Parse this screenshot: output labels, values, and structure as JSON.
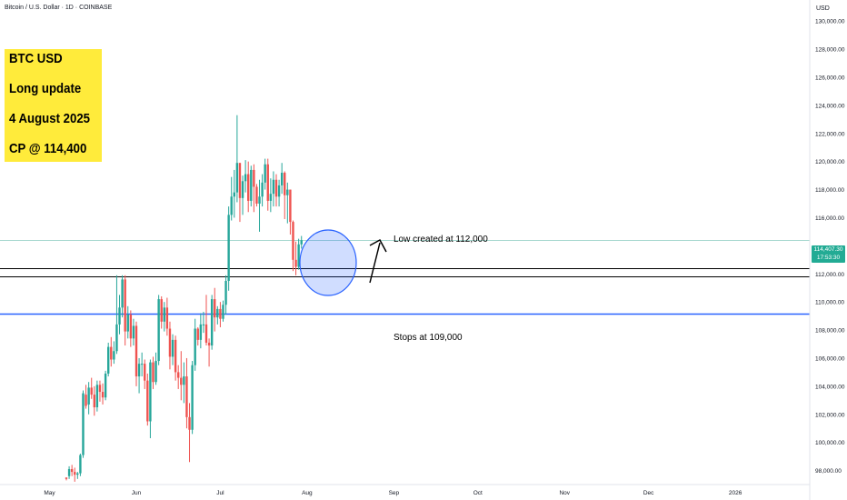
{
  "header": {
    "symbol_line": "Bitcoin / U.S. Dollar · 1D · COINBASE"
  },
  "info_box": {
    "line1": "BTC USD",
    "line2": "Long update",
    "line3": "4 August 2025",
    "line4": "CP @ 114,400",
    "background": "#ffeb3b"
  },
  "axis": {
    "currency": "USD",
    "y_ticks": [
      "130,000.00",
      "128,000.00",
      "126,000.00",
      "124,000.00",
      "122,000.00",
      "120,000.00",
      "118,000.00",
      "116,000.00",
      "112,000.00",
      "110,000.00",
      "108,000.00",
      "106,000.00",
      "104,000.00",
      "102,000.00",
      "100,000.00",
      "98,000.00"
    ],
    "x_ticks": [
      "May",
      "Jun",
      "Jul",
      "Aug",
      "Sep",
      "Oct",
      "Nov",
      "Dec",
      "2026"
    ]
  },
  "price_tag": {
    "price": "114,407.30",
    "countdown": "17:53:30",
    "color": "#22ab94"
  },
  "annotations": {
    "low_created": "Low created at 112,000",
    "stops": "Stops at 109,000"
  },
  "chart_data": {
    "type": "candlestick",
    "title": "Bitcoin / U.S. Dollar · 1D · COINBASE",
    "ylim": [
      97000,
      131500
    ],
    "y_ticks": [
      98000,
      100000,
      102000,
      104000,
      106000,
      108000,
      110000,
      112000,
      116000,
      118000,
      120000,
      122000,
      124000,
      126000,
      128000,
      130000
    ],
    "x_ticks": [
      {
        "label": "May",
        "i": -6
      },
      {
        "label": "Jun",
        "i": 25
      },
      {
        "label": "Jul",
        "i": 55
      },
      {
        "label": "Aug",
        "i": 86
      },
      {
        "label": "Sep",
        "i": 117
      },
      {
        "label": "Oct",
        "i": 147
      },
      {
        "label": "Nov",
        "i": 178
      },
      {
        "label": "Dec",
        "i": 208
      },
      {
        "label": "2026",
        "i": 239
      }
    ],
    "up_color": "#26a69a",
    "down_color": "#ef5350",
    "levels": [
      {
        "name": "support-upper",
        "price": 112400,
        "color": "#000000"
      },
      {
        "name": "support-lower",
        "price": 111800,
        "color": "#000000"
      },
      {
        "name": "stops",
        "price": 109200,
        "color": "#2962ff"
      },
      {
        "name": "current-price",
        "price": 114407,
        "color": "#a8d8d0"
      }
    ],
    "candles": [
      [
        97500,
        97500,
        97300,
        97400
      ],
      [
        97600,
        98300,
        97400,
        98100
      ],
      [
        98100,
        98400,
        97600,
        97900
      ],
      [
        97900,
        98200,
        97200,
        97700
      ],
      [
        97700,
        97900,
        97400,
        97800
      ],
      [
        97800,
        99200,
        97600,
        99100
      ],
      [
        99100,
        103700,
        98900,
        103500
      ],
      [
        103400,
        104100,
        102400,
        102600
      ],
      [
        102700,
        104300,
        102000,
        103900
      ],
      [
        103900,
        104600,
        103100,
        103400
      ],
      [
        103400,
        104000,
        101900,
        102500
      ],
      [
        102500,
        104400,
        102200,
        104100
      ],
      [
        104100,
        104400,
        102900,
        103600
      ],
      [
        103600,
        104200,
        102700,
        103200
      ],
      [
        103200,
        105100,
        103000,
        104900
      ],
      [
        104900,
        107100,
        104700,
        106800
      ],
      [
        106800,
        107500,
        105400,
        105900
      ],
      [
        105900,
        107200,
        105600,
        106500
      ],
      [
        106500,
        111900,
        106300,
        108400
      ],
      [
        108400,
        110500,
        107700,
        109600
      ],
      [
        109600,
        111900,
        108900,
        111600
      ],
      [
        111600,
        111900,
        106900,
        107900
      ],
      [
        107900,
        109700,
        107400,
        109100
      ],
      [
        109100,
        109400,
        106800,
        107400
      ],
      [
        107400,
        108800,
        106900,
        108300
      ],
      [
        108300,
        108600,
        104000,
        104700
      ],
      [
        104700,
        106000,
        103500,
        105600
      ],
      [
        105600,
        106400,
        104700,
        105600
      ],
      [
        105600,
        105900,
        103800,
        104400
      ],
      [
        104400,
        104900,
        101200,
        101500
      ],
      [
        101500,
        105900,
        100300,
        105700
      ],
      [
        105700,
        106100,
        103800,
        104300
      ],
      [
        104300,
        106400,
        104100,
        105800
      ],
      [
        105800,
        110500,
        105500,
        110200
      ],
      [
        110200,
        110400,
        108100,
        108600
      ],
      [
        108600,
        110000,
        107900,
        109600
      ],
      [
        109600,
        110300,
        107600,
        108100
      ],
      [
        108100,
        108600,
        105200,
        106100
      ],
      [
        106100,
        107700,
        105500,
        107300
      ],
      [
        107300,
        107600,
        104400,
        105000
      ],
      [
        105000,
        105500,
        103800,
        104600
      ],
      [
        104600,
        106500,
        103000,
        104100
      ],
      [
        104100,
        105700,
        102800,
        104700
      ],
      [
        104700,
        106000,
        101000,
        101800
      ],
      [
        101800,
        102800,
        98600,
        100900
      ],
      [
        100900,
        105800,
        100600,
        105500
      ],
      [
        105500,
        108800,
        105100,
        108100
      ],
      [
        108100,
        108200,
        106900,
        107300
      ],
      [
        107300,
        109200,
        106700,
        108400
      ],
      [
        108400,
        109300,
        107800,
        108400
      ],
      [
        108400,
        110500,
        106900,
        107100
      ],
      [
        107100,
        107400,
        105400,
        106900
      ],
      [
        106900,
        110500,
        106600,
        110200
      ],
      [
        110200,
        111000,
        107900,
        108900
      ],
      [
        108900,
        109700,
        108400,
        109500
      ],
      [
        109500,
        110000,
        108200,
        108800
      ],
      [
        108800,
        110100,
        108600,
        109800
      ],
      [
        109800,
        111900,
        109100,
        111500
      ],
      [
        111500,
        116800,
        110800,
        116200
      ],
      [
        116200,
        118900,
        115800,
        117500
      ],
      [
        117500,
        119400,
        116000,
        117800
      ],
      [
        117800,
        123300,
        117100,
        119900
      ],
      [
        119900,
        119900,
        115700,
        117400
      ],
      [
        117400,
        119000,
        116200,
        118600
      ],
      [
        118600,
        120100,
        117800,
        119100
      ],
      [
        119100,
        120000,
        116400,
        117200
      ],
      [
        117200,
        119700,
        116800,
        119400
      ],
      [
        119400,
        119800,
        116400,
        118200
      ],
      [
        118200,
        118400,
        116800,
        117000
      ],
      [
        117000,
        118700,
        115000,
        117500
      ],
      [
        117500,
        119100,
        116800,
        118500
      ],
      [
        118500,
        120200,
        118000,
        119800
      ],
      [
        119800,
        120200,
        116500,
        117200
      ],
      [
        117200,
        118800,
        116400,
        117700
      ],
      [
        117700,
        119300,
        116800,
        118700
      ],
      [
        118700,
        119100,
        116800,
        117500
      ],
      [
        117500,
        118700,
        116800,
        118300
      ],
      [
        118300,
        119900,
        117700,
        119200
      ],
      [
        119200,
        119300,
        115900,
        117600
      ],
      [
        117600,
        118500,
        115600,
        118000
      ],
      [
        118000,
        118000,
        114800,
        115700
      ],
      [
        115700,
        115800,
        112200,
        113000
      ],
      [
        113000,
        114300,
        111900,
        112500
      ],
      [
        112500,
        114500,
        112300,
        114100
      ],
      [
        114100,
        114700,
        113800,
        114400
      ]
    ]
  }
}
